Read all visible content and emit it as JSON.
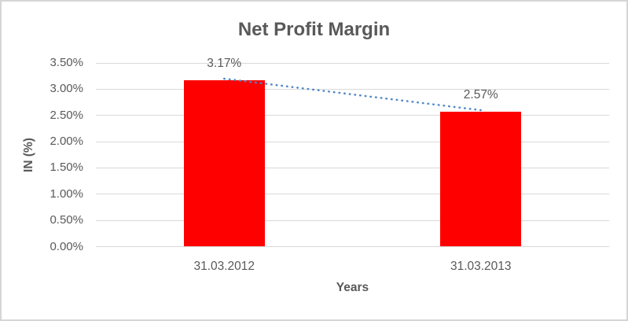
{
  "colors": {
    "bar": "#ff0000",
    "trendline": "#4e87c8",
    "gridline": "#d9d9d9",
    "text": "#595959",
    "border": "#d5d5d5"
  },
  "chart_data": {
    "type": "bar",
    "title": "Net Profit Margin",
    "xlabel": "Years",
    "ylabel": "IN (%)",
    "categories": [
      "31.03.2012",
      "31.03.2013"
    ],
    "values": [
      3.17,
      2.57
    ],
    "data_labels": [
      "3.17%",
      "2.57%"
    ],
    "ylim": [
      0,
      3.5
    ],
    "ytick_step": 0.5,
    "ytick_labels": [
      "0.00%",
      "0.50%",
      "1.00%",
      "1.50%",
      "2.00%",
      "2.50%",
      "3.00%",
      "3.50%"
    ],
    "grid": true,
    "legend": false,
    "trendline": {
      "type": "linear",
      "style": "dotted",
      "series": "values"
    }
  }
}
